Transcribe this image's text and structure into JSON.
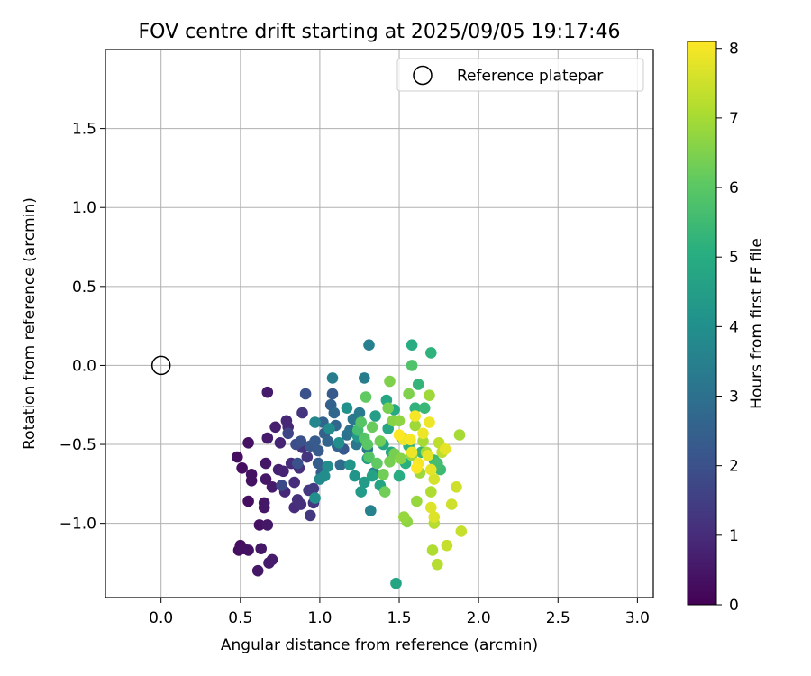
{
  "chart_data": {
    "type": "scatter",
    "title": "FOV centre drift starting at 2025/09/05 19:17:46",
    "xlabel": "Angular distance from reference (arcmin)",
    "ylabel": "Rotation from reference (arcmin)",
    "xlim": [
      -0.35,
      3.1
    ],
    "ylim": [
      -1.47,
      2.0
    ],
    "xticks": [
      0.0,
      0.5,
      1.0,
      1.5,
      2.0,
      2.5,
      3.0
    ],
    "xtick_labels": [
      "0.0",
      "0.5",
      "1.0",
      "1.5",
      "2.0",
      "2.5",
      "3.0"
    ],
    "yticks": [
      -1.0,
      -0.5,
      0.0,
      0.5,
      1.0,
      1.5
    ],
    "ytick_labels": [
      "−1.0",
      "−0.5",
      "0.0",
      "0.5",
      "1.0",
      "1.5"
    ],
    "grid": true,
    "legend": {
      "position": "top-right",
      "entries": [
        "Reference platepar"
      ]
    },
    "reference_point": {
      "x": 0.0,
      "y": 0.0,
      "label": "Reference platepar"
    },
    "colorbar": {
      "label": "Hours from first FF file",
      "range": [
        0,
        8.1
      ],
      "ticks": [
        0,
        1,
        2,
        3,
        4,
        5,
        6,
        7,
        8
      ],
      "tick_labels": [
        "0",
        "1",
        "2",
        "3",
        "4",
        "5",
        "6",
        "7",
        "8"
      ],
      "colormap": "viridis"
    },
    "series": [
      {
        "name": "FOV centre",
        "points": [
          {
            "x": 0.49,
            "y": -1.17,
            "t": 0.3
          },
          {
            "x": 0.5,
            "y": -1.14,
            "t": 0.3
          },
          {
            "x": 0.52,
            "y": -1.16,
            "t": 0.4
          },
          {
            "x": 0.55,
            "y": -1.17,
            "t": 0.4
          },
          {
            "x": 0.61,
            "y": -1.3,
            "t": 0.5
          },
          {
            "x": 0.63,
            "y": -1.16,
            "t": 0.5
          },
          {
            "x": 0.68,
            "y": -1.25,
            "t": 0.6
          },
          {
            "x": 0.7,
            "y": -1.23,
            "t": 0.6
          },
          {
            "x": 0.62,
            "y": -1.01,
            "t": 0.4
          },
          {
            "x": 0.67,
            "y": -1.01,
            "t": 0.5
          },
          {
            "x": 0.55,
            "y": -0.86,
            "t": 0.3
          },
          {
            "x": 0.65,
            "y": -0.87,
            "t": 0.5
          },
          {
            "x": 0.65,
            "y": -0.9,
            "t": 0.5
          },
          {
            "x": 0.48,
            "y": -0.58,
            "t": 0.3
          },
          {
            "x": 0.51,
            "y": -0.65,
            "t": 0.3
          },
          {
            "x": 0.55,
            "y": -0.49,
            "t": 0.4
          },
          {
            "x": 0.57,
            "y": -0.69,
            "t": 0.4
          },
          {
            "x": 0.57,
            "y": -0.73,
            "t": 0.4
          },
          {
            "x": 0.66,
            "y": -0.62,
            "t": 0.5
          },
          {
            "x": 0.66,
            "y": -0.72,
            "t": 0.5
          },
          {
            "x": 0.67,
            "y": -0.46,
            "t": 0.6
          },
          {
            "x": 0.67,
            "y": -0.17,
            "t": 0.6
          },
          {
            "x": 0.72,
            "y": -0.39,
            "t": 0.7
          },
          {
            "x": 0.7,
            "y": -0.77,
            "t": 0.6
          },
          {
            "x": 0.74,
            "y": -0.66,
            "t": 0.7
          },
          {
            "x": 0.75,
            "y": -0.49,
            "t": 0.8
          },
          {
            "x": 0.77,
            "y": -0.67,
            "t": 0.8
          },
          {
            "x": 0.79,
            "y": -0.35,
            "t": 0.9
          },
          {
            "x": 0.8,
            "y": -0.39,
            "t": 0.9
          },
          {
            "x": 0.78,
            "y": -0.8,
            "t": 0.9
          },
          {
            "x": 0.82,
            "y": -0.62,
            "t": 1.0
          },
          {
            "x": 0.84,
            "y": -0.74,
            "t": 1.0
          },
          {
            "x": 0.84,
            "y": -0.9,
            "t": 1.0
          },
          {
            "x": 0.86,
            "y": -0.85,
            "t": 1.1
          },
          {
            "x": 0.87,
            "y": -0.65,
            "t": 1.1
          },
          {
            "x": 0.88,
            "y": -0.88,
            "t": 1.1
          },
          {
            "x": 0.89,
            "y": -0.3,
            "t": 1.2
          },
          {
            "x": 0.89,
            "y": -0.52,
            "t": 1.2
          },
          {
            "x": 0.92,
            "y": -0.58,
            "t": 1.2
          },
          {
            "x": 0.93,
            "y": -0.79,
            "t": 1.3
          },
          {
            "x": 0.94,
            "y": -0.95,
            "t": 1.3
          },
          {
            "x": 0.96,
            "y": -0.87,
            "t": 1.3
          },
          {
            "x": 0.96,
            "y": -0.78,
            "t": 1.4
          },
          {
            "x": 0.76,
            "y": -0.76,
            "t": 1.8
          },
          {
            "x": 0.8,
            "y": -0.43,
            "t": 1.7
          },
          {
            "x": 0.85,
            "y": -0.5,
            "t": 1.9
          },
          {
            "x": 0.86,
            "y": -0.62,
            "t": 2.0
          },
          {
            "x": 0.88,
            "y": -0.48,
            "t": 2.0
          },
          {
            "x": 0.91,
            "y": -0.18,
            "t": 2.0
          },
          {
            "x": 0.94,
            "y": -0.51,
            "t": 2.2
          },
          {
            "x": 0.97,
            "y": -0.48,
            "t": 2.3
          },
          {
            "x": 0.99,
            "y": -0.54,
            "t": 2.3
          },
          {
            "x": 0.99,
            "y": -0.62,
            "t": 2.4
          },
          {
            "x": 1.01,
            "y": -0.68,
            "t": 2.4
          },
          {
            "x": 1.02,
            "y": -0.36,
            "t": 2.6
          },
          {
            "x": 1.03,
            "y": -0.43,
            "t": 2.5
          },
          {
            "x": 1.05,
            "y": -0.48,
            "t": 2.6
          },
          {
            "x": 1.07,
            "y": -0.25,
            "t": 2.5
          },
          {
            "x": 1.08,
            "y": -0.18,
            "t": 2.3
          },
          {
            "x": 1.09,
            "y": -0.3,
            "t": 2.7
          },
          {
            "x": 1.1,
            "y": -0.38,
            "t": 2.7
          },
          {
            "x": 1.11,
            "y": -0.51,
            "t": 2.6
          },
          {
            "x": 1.13,
            "y": -0.63,
            "t": 2.8
          },
          {
            "x": 1.15,
            "y": -0.53,
            "t": 2.2
          },
          {
            "x": 1.17,
            "y": -0.44,
            "t": 3.0
          },
          {
            "x": 1.19,
            "y": -0.41,
            "t": 3.1
          },
          {
            "x": 1.21,
            "y": -0.34,
            "t": 3.2
          },
          {
            "x": 1.23,
            "y": -0.5,
            "t": 3.2
          },
          {
            "x": 1.25,
            "y": -0.3,
            "t": 3.3
          },
          {
            "x": 1.28,
            "y": -0.08,
            "t": 3.4
          },
          {
            "x": 1.3,
            "y": -0.53,
            "t": 3.3
          },
          {
            "x": 1.31,
            "y": 0.13,
            "t": 3.5
          },
          {
            "x": 1.32,
            "y": -0.92,
            "t": 3.6
          },
          {
            "x": 1.34,
            "y": -0.68,
            "t": 3.5
          },
          {
            "x": 1.08,
            "y": -0.08,
            "t": 3.4
          },
          {
            "x": 0.97,
            "y": -0.36,
            "t": 3.7
          },
          {
            "x": 1.0,
            "y": -0.72,
            "t": 3.8
          },
          {
            "x": 1.03,
            "y": -0.7,
            "t": 3.9
          },
          {
            "x": 1.05,
            "y": -0.64,
            "t": 3.9
          },
          {
            "x": 0.97,
            "y": -0.84,
            "t": 4.0
          },
          {
            "x": 1.06,
            "y": -0.4,
            "t": 3.9
          },
          {
            "x": 1.12,
            "y": -0.49,
            "t": 4.0
          },
          {
            "x": 1.17,
            "y": -0.27,
            "t": 4.1
          },
          {
            "x": 1.19,
            "y": -0.63,
            "t": 4.2
          },
          {
            "x": 1.22,
            "y": -0.7,
            "t": 4.2
          },
          {
            "x": 1.24,
            "y": -0.45,
            "t": 4.3
          },
          {
            "x": 1.26,
            "y": -0.8,
            "t": 4.4
          },
          {
            "x": 1.28,
            "y": -0.74,
            "t": 4.4
          },
          {
            "x": 1.3,
            "y": -0.59,
            "t": 4.5
          },
          {
            "x": 1.33,
            "y": -0.7,
            "t": 4.6
          },
          {
            "x": 1.35,
            "y": -0.32,
            "t": 4.5
          },
          {
            "x": 1.38,
            "y": -0.76,
            "t": 4.7
          },
          {
            "x": 1.4,
            "y": -0.5,
            "t": 4.7
          },
          {
            "x": 1.42,
            "y": -0.22,
            "t": 4.8
          },
          {
            "x": 1.43,
            "y": -0.4,
            "t": 4.8
          },
          {
            "x": 1.45,
            "y": -0.55,
            "t": 4.9
          },
          {
            "x": 1.47,
            "y": -0.28,
            "t": 4.9
          },
          {
            "x": 1.48,
            "y": -1.38,
            "t": 4.7
          },
          {
            "x": 1.5,
            "y": -0.7,
            "t": 5.0
          },
          {
            "x": 1.52,
            "y": -0.46,
            "t": 5.1
          },
          {
            "x": 1.54,
            "y": -0.62,
            "t": 5.1
          },
          {
            "x": 1.56,
            "y": -0.51,
            "t": 5.2
          },
          {
            "x": 1.58,
            "y": 0.13,
            "t": 5.0
          },
          {
            "x": 1.6,
            "y": -0.27,
            "t": 5.2
          },
          {
            "x": 1.62,
            "y": -0.12,
            "t": 5.3
          },
          {
            "x": 1.64,
            "y": -0.55,
            "t": 5.3
          },
          {
            "x": 1.66,
            "y": -0.27,
            "t": 5.4
          },
          {
            "x": 1.7,
            "y": 0.08,
            "t": 5.2
          },
          {
            "x": 1.72,
            "y": -0.6,
            "t": 5.5
          },
          {
            "x": 1.76,
            "y": -0.66,
            "t": 5.5
          },
          {
            "x": 1.74,
            "y": -0.62,
            "t": 5.6
          },
          {
            "x": 1.58,
            "y": 0.0,
            "t": 5.8
          },
          {
            "x": 1.24,
            "y": -0.41,
            "t": 5.6
          },
          {
            "x": 1.26,
            "y": -0.36,
            "t": 5.9
          },
          {
            "x": 1.28,
            "y": -0.46,
            "t": 5.9
          },
          {
            "x": 1.29,
            "y": -0.2,
            "t": 6.1
          },
          {
            "x": 1.3,
            "y": -0.5,
            "t": 6.0
          },
          {
            "x": 1.31,
            "y": -0.58,
            "t": 5.9
          },
          {
            "x": 1.33,
            "y": -0.39,
            "t": 6.2
          },
          {
            "x": 1.36,
            "y": -0.62,
            "t": 6.1
          },
          {
            "x": 1.38,
            "y": -0.48,
            "t": 6.3
          },
          {
            "x": 1.4,
            "y": -0.69,
            "t": 6.3
          },
          {
            "x": 1.41,
            "y": -0.8,
            "t": 6.3
          },
          {
            "x": 1.43,
            "y": -0.27,
            "t": 6.4
          },
          {
            "x": 1.44,
            "y": -0.1,
            "t": 6.5
          },
          {
            "x": 1.44,
            "y": -0.61,
            "t": 6.4
          },
          {
            "x": 1.46,
            "y": -0.35,
            "t": 6.6
          },
          {
            "x": 1.47,
            "y": -0.56,
            "t": 6.4
          },
          {
            "x": 1.5,
            "y": -0.35,
            "t": 6.7
          },
          {
            "x": 1.51,
            "y": -0.59,
            "t": 6.6
          },
          {
            "x": 1.53,
            "y": -0.96,
            "t": 6.8
          },
          {
            "x": 1.55,
            "y": -0.99,
            "t": 6.7
          },
          {
            "x": 1.56,
            "y": -0.18,
            "t": 6.5
          },
          {
            "x": 1.58,
            "y": -0.57,
            "t": 6.8
          },
          {
            "x": 1.6,
            "y": -0.38,
            "t": 6.9
          },
          {
            "x": 1.61,
            "y": -0.86,
            "t": 6.8
          },
          {
            "x": 1.63,
            "y": -0.68,
            "t": 6.9
          },
          {
            "x": 1.65,
            "y": -0.48,
            "t": 7.0
          },
          {
            "x": 1.67,
            "y": -0.55,
            "t": 7.0
          },
          {
            "x": 1.69,
            "y": -0.19,
            "t": 6.9
          },
          {
            "x": 1.7,
            "y": -0.8,
            "t": 7.1
          },
          {
            "x": 1.71,
            "y": -1.17,
            "t": 7.1
          },
          {
            "x": 1.72,
            "y": -1.0,
            "t": 7.2
          },
          {
            "x": 1.74,
            "y": -1.26,
            "t": 7.2
          },
          {
            "x": 1.75,
            "y": -0.49,
            "t": 7.3
          },
          {
            "x": 1.77,
            "y": -0.55,
            "t": 7.3
          },
          {
            "x": 1.8,
            "y": -1.14,
            "t": 7.4
          },
          {
            "x": 1.83,
            "y": -0.88,
            "t": 7.5
          },
          {
            "x": 1.86,
            "y": -0.77,
            "t": 7.5
          },
          {
            "x": 1.88,
            "y": -0.44,
            "t": 7.0
          },
          {
            "x": 1.89,
            "y": -1.05,
            "t": 7.4
          },
          {
            "x": 1.72,
            "y": -0.72,
            "t": 7.6
          },
          {
            "x": 1.7,
            "y": -0.9,
            "t": 7.7
          },
          {
            "x": 1.72,
            "y": -0.96,
            "t": 7.7
          },
          {
            "x": 1.7,
            "y": -0.66,
            "t": 7.8
          },
          {
            "x": 1.68,
            "y": -0.57,
            "t": 7.8
          },
          {
            "x": 1.65,
            "y": -0.43,
            "t": 7.9
          },
          {
            "x": 1.69,
            "y": -0.36,
            "t": 7.9
          },
          {
            "x": 1.62,
            "y": -0.62,
            "t": 8.0
          },
          {
            "x": 1.57,
            "y": -0.47,
            "t": 8.0
          },
          {
            "x": 1.53,
            "y": -0.47,
            "t": 7.9
          },
          {
            "x": 1.5,
            "y": -0.44,
            "t": 8.1
          },
          {
            "x": 1.61,
            "y": -0.65,
            "t": 8.1
          },
          {
            "x": 1.79,
            "y": -0.53,
            "t": 7.8
          },
          {
            "x": 1.6,
            "y": -0.32,
            "t": 8.0
          },
          {
            "x": 1.58,
            "y": -0.55,
            "t": 7.9
          }
        ]
      }
    ]
  }
}
